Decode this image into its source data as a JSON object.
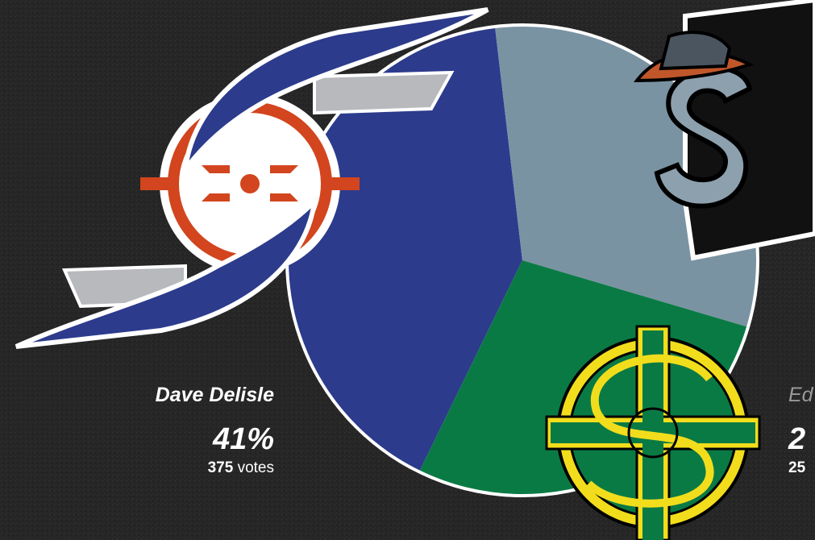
{
  "chart_data": {
    "type": "pie",
    "series": [
      {
        "name": "Dave Delisle",
        "color": "#2c3b8c",
        "value": 41,
        "percent_label": "41%",
        "votes": 375,
        "votes_unit": "votes"
      },
      {
        "name": null,
        "color": "#7a93a3",
        "value": 31.5,
        "percent_label": null,
        "votes": null,
        "votes_unit": null
      },
      {
        "name": "Ed",
        "color": "#0a7a44",
        "value": 27.7,
        "percent_label": "2",
        "votes": "25",
        "votes_unit": null
      }
    ]
  }
}
